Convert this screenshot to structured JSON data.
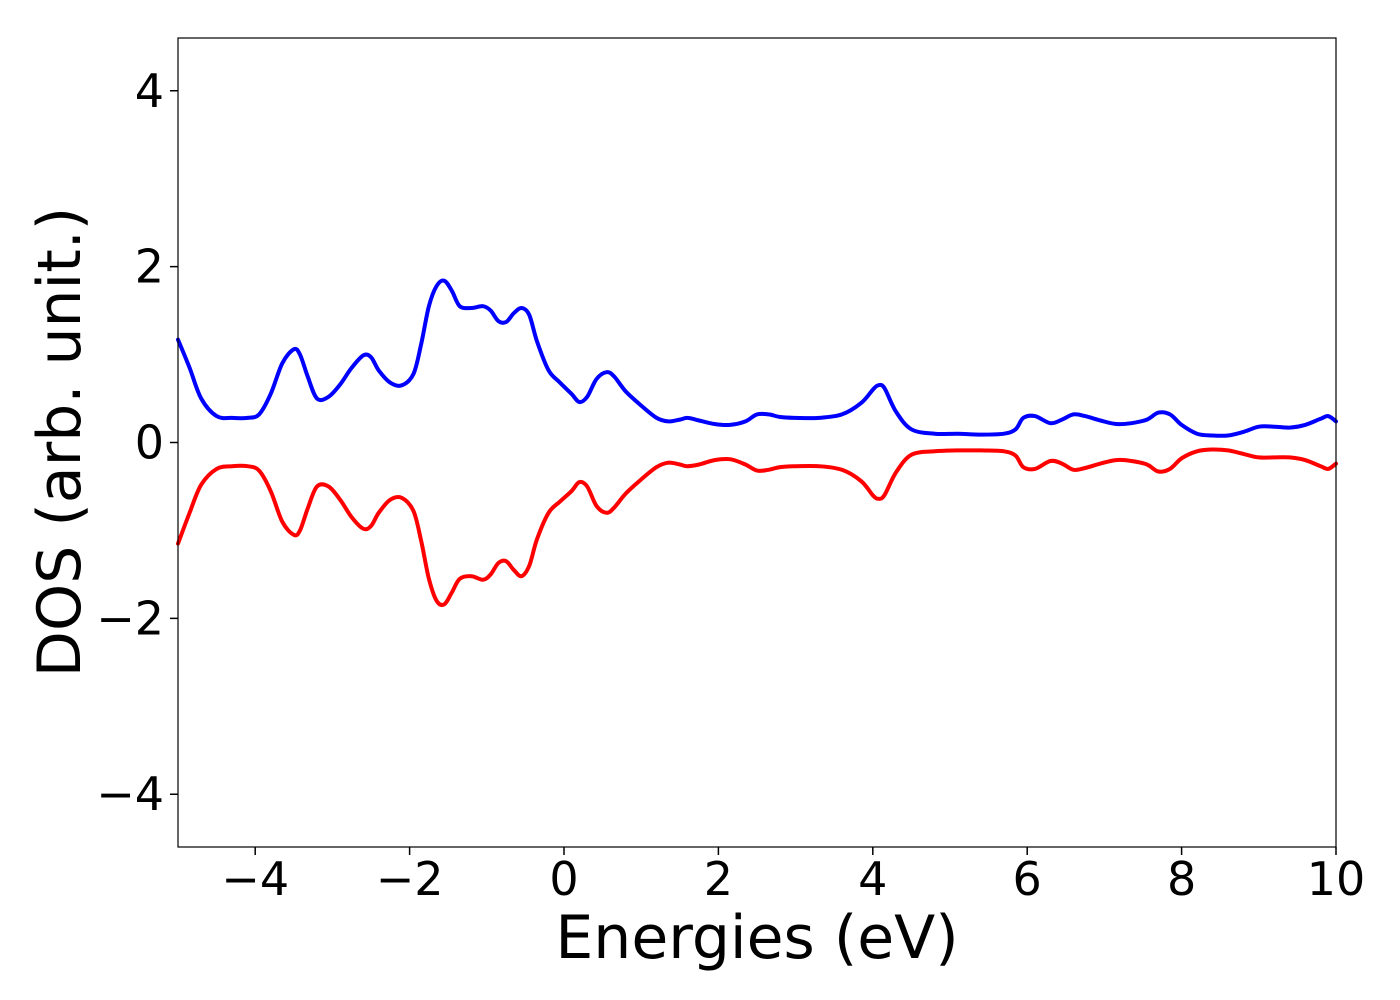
{
  "chart_data": {
    "type": "line",
    "xlabel": "Energies (eV)",
    "ylabel": "DOS (arb. unit.)",
    "xlim": [
      -5,
      10
    ],
    "ylim": [
      -4.6,
      4.6
    ],
    "grid": false,
    "legend": "none",
    "xticks": [
      -4,
      -2,
      0,
      2,
      4,
      6,
      8,
      10
    ],
    "yticks": [
      -4,
      -2,
      0,
      2,
      4
    ],
    "xtick_labels": [
      "−4",
      "−2",
      "0",
      "2",
      "4",
      "6",
      "8",
      "10"
    ],
    "ytick_labels": [
      "−4",
      "−2",
      "0",
      "2",
      "4"
    ],
    "series": [
      {
        "color": "#0000ff",
        "x": [
          -5.0,
          -4.85,
          -4.7,
          -4.5,
          -4.3,
          -4.1,
          -3.95,
          -3.8,
          -3.65,
          -3.5,
          -3.42,
          -3.32,
          -3.2,
          -3.05,
          -2.9,
          -2.75,
          -2.6,
          -2.5,
          -2.4,
          -2.25,
          -2.1,
          -1.95,
          -1.85,
          -1.75,
          -1.65,
          -1.55,
          -1.45,
          -1.35,
          -1.2,
          -1.05,
          -0.95,
          -0.85,
          -0.75,
          -0.65,
          -0.55,
          -0.45,
          -0.35,
          -0.2,
          -0.05,
          0.1,
          0.2,
          0.3,
          0.42,
          0.55,
          0.65,
          0.8,
          1.0,
          1.2,
          1.35,
          1.5,
          1.6,
          1.75,
          1.95,
          2.15,
          2.35,
          2.5,
          2.65,
          2.8,
          3.0,
          3.3,
          3.6,
          3.85,
          4.0,
          4.07,
          4.15,
          4.3,
          4.5,
          4.8,
          5.1,
          5.4,
          5.7,
          5.85,
          5.95,
          6.1,
          6.3,
          6.45,
          6.6,
          6.75,
          6.95,
          7.15,
          7.35,
          7.55,
          7.7,
          7.85,
          8.0,
          8.2,
          8.4,
          8.6,
          8.8,
          9.0,
          9.2,
          9.4,
          9.6,
          9.8,
          9.9,
          10.0
        ],
        "y": [
          1.17,
          0.85,
          0.5,
          0.3,
          0.28,
          0.28,
          0.32,
          0.55,
          0.9,
          1.06,
          1.0,
          0.75,
          0.5,
          0.52,
          0.66,
          0.85,
          0.99,
          0.97,
          0.82,
          0.68,
          0.65,
          0.78,
          1.12,
          1.55,
          1.78,
          1.84,
          1.72,
          1.55,
          1.53,
          1.55,
          1.5,
          1.38,
          1.37,
          1.47,
          1.53,
          1.45,
          1.15,
          0.82,
          0.68,
          0.55,
          0.46,
          0.52,
          0.72,
          0.8,
          0.75,
          0.58,
          0.42,
          0.28,
          0.24,
          0.26,
          0.28,
          0.25,
          0.21,
          0.2,
          0.24,
          0.32,
          0.32,
          0.29,
          0.28,
          0.28,
          0.32,
          0.45,
          0.6,
          0.65,
          0.62,
          0.35,
          0.15,
          0.1,
          0.1,
          0.09,
          0.1,
          0.15,
          0.28,
          0.3,
          0.22,
          0.26,
          0.32,
          0.3,
          0.25,
          0.21,
          0.22,
          0.26,
          0.34,
          0.32,
          0.2,
          0.1,
          0.08,
          0.08,
          0.12,
          0.18,
          0.18,
          0.17,
          0.2,
          0.27,
          0.3,
          0.24
        ]
      },
      {
        "color": "#ff0000",
        "x": [
          -5.0,
          -4.85,
          -4.7,
          -4.5,
          -4.3,
          -4.1,
          -3.95,
          -3.8,
          -3.65,
          -3.5,
          -3.42,
          -3.32,
          -3.2,
          -3.05,
          -2.9,
          -2.75,
          -2.6,
          -2.5,
          -2.4,
          -2.25,
          -2.1,
          -1.95,
          -1.85,
          -1.75,
          -1.65,
          -1.55,
          -1.45,
          -1.35,
          -1.2,
          -1.05,
          -0.95,
          -0.85,
          -0.75,
          -0.65,
          -0.55,
          -0.45,
          -0.35,
          -0.2,
          -0.05,
          0.1,
          0.2,
          0.3,
          0.42,
          0.55,
          0.65,
          0.8,
          1.0,
          1.2,
          1.35,
          1.5,
          1.6,
          1.75,
          1.95,
          2.15,
          2.35,
          2.5,
          2.65,
          2.8,
          3.0,
          3.3,
          3.6,
          3.85,
          4.0,
          4.07,
          4.15,
          4.3,
          4.5,
          4.8,
          5.1,
          5.4,
          5.7,
          5.85,
          5.95,
          6.1,
          6.3,
          6.45,
          6.6,
          6.75,
          6.95,
          7.15,
          7.35,
          7.55,
          7.7,
          7.85,
          8.0,
          8.2,
          8.4,
          8.6,
          8.8,
          9.0,
          9.2,
          9.4,
          9.6,
          9.8,
          9.9,
          10.0
        ],
        "y": [
          -1.15,
          -0.8,
          -0.48,
          -0.3,
          -0.27,
          -0.27,
          -0.32,
          -0.55,
          -0.9,
          -1.05,
          -1.0,
          -0.75,
          -0.5,
          -0.5,
          -0.65,
          -0.85,
          -0.98,
          -0.95,
          -0.8,
          -0.65,
          -0.63,
          -0.78,
          -1.12,
          -1.55,
          -1.8,
          -1.84,
          -1.7,
          -1.55,
          -1.52,
          -1.56,
          -1.5,
          -1.37,
          -1.35,
          -1.45,
          -1.52,
          -1.4,
          -1.1,
          -0.8,
          -0.67,
          -0.55,
          -0.45,
          -0.5,
          -0.72,
          -0.8,
          -0.74,
          -0.58,
          -0.42,
          -0.28,
          -0.23,
          -0.25,
          -0.27,
          -0.25,
          -0.2,
          -0.19,
          -0.25,
          -0.32,
          -0.31,
          -0.28,
          -0.27,
          -0.27,
          -0.31,
          -0.44,
          -0.6,
          -0.64,
          -0.6,
          -0.34,
          -0.14,
          -0.1,
          -0.09,
          -0.09,
          -0.1,
          -0.15,
          -0.28,
          -0.3,
          -0.21,
          -0.24,
          -0.31,
          -0.29,
          -0.24,
          -0.2,
          -0.21,
          -0.25,
          -0.33,
          -0.3,
          -0.18,
          -0.1,
          -0.08,
          -0.09,
          -0.13,
          -0.17,
          -0.17,
          -0.17,
          -0.2,
          -0.27,
          -0.3,
          -0.24
        ]
      }
    ]
  }
}
